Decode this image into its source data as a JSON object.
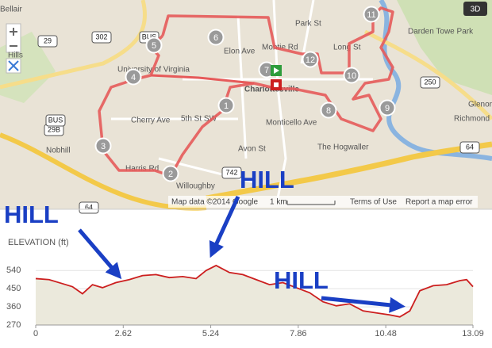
{
  "map": {
    "labels": [
      "Bellair",
      "Hills",
      "University of Virginia",
      "Cherry Ave",
      "Nobhill",
      "Harris Rd",
      "5th St SW",
      "Willoughby",
      "Avon St",
      "Monticello Ave",
      "The Hogwaller",
      "Charlottesville",
      "Park St",
      "Long St",
      "Darden Towe Park",
      "Glenor",
      "Richmond",
      "Montie Rd",
      "Elon Ave"
    ],
    "shields": [
      "29",
      "302",
      "BUS",
      "29B",
      "742",
      "250",
      "64",
      "64",
      "BUS"
    ],
    "markers": [
      "1",
      "2",
      "3",
      "4",
      "5",
      "6",
      "7",
      "8",
      "9",
      "10",
      "11",
      "12"
    ],
    "badge": "3D",
    "attribution": "Map data ©2014 Google",
    "scale": "1 km",
    "terms": "Terms of Use",
    "report": "Report a map error"
  },
  "annotations": [
    "HILL",
    "HILL",
    "HILL"
  ],
  "chart_data": {
    "type": "area",
    "title": "ELEVATION (ft)",
    "x": [
      0,
      0.4,
      0.8,
      1.1,
      1.4,
      1.7,
      2.0,
      2.4,
      2.8,
      3.2,
      3.6,
      4.0,
      4.4,
      4.8,
      5.1,
      5.4,
      5.8,
      6.2,
      6.6,
      7.0,
      7.4,
      7.8,
      8.2,
      8.6,
      9.0,
      9.4,
      9.8,
      10.2,
      10.6,
      10.9,
      11.2,
      11.5,
      11.9,
      12.3,
      12.7,
      12.9,
      13.09
    ],
    "values": [
      500,
      495,
      475,
      460,
      425,
      470,
      455,
      480,
      495,
      515,
      520,
      505,
      510,
      500,
      540,
      565,
      530,
      520,
      495,
      470,
      480,
      455,
      430,
      385,
      365,
      375,
      340,
      330,
      320,
      310,
      340,
      440,
      465,
      470,
      490,
      495,
      460
    ],
    "color": "#cc1f1f",
    "fill": "#ebe9dc",
    "xlim": [
      0,
      13.09
    ],
    "ylim": [
      270,
      600
    ],
    "xticks": [
      0,
      2.62,
      5.24,
      7.86,
      10.48,
      13.09
    ],
    "yticks": [
      270,
      360,
      450,
      540
    ],
    "grid": true
  }
}
